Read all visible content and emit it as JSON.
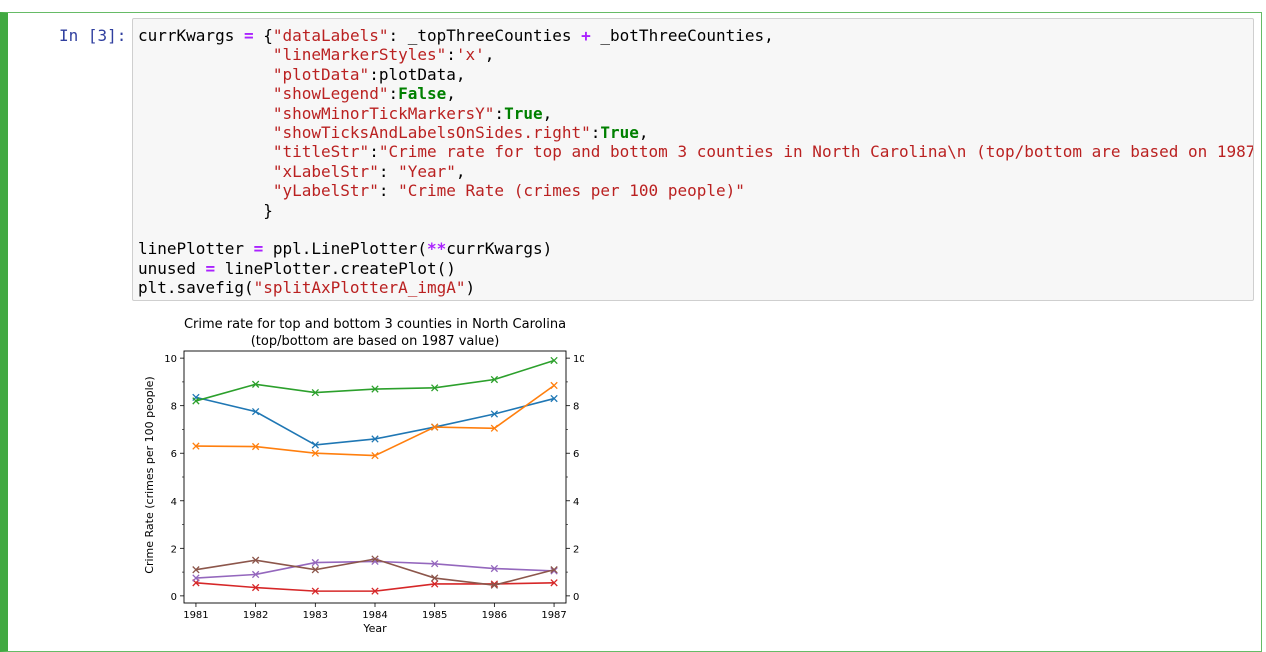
{
  "cell": {
    "prompt": "In [3]:",
    "code_lines": [
      [
        {
          "t": "t",
          "v": "currKwargs "
        },
        {
          "t": "o",
          "v": "="
        },
        {
          "t": "t",
          "v": " {"
        },
        {
          "t": "s",
          "v": "\"dataLabels\""
        },
        {
          "t": "t",
          "v": ": _topThreeCounties "
        },
        {
          "t": "o",
          "v": "+"
        },
        {
          "t": "t",
          "v": " _botThreeCounties,"
        }
      ],
      [
        {
          "t": "t",
          "v": "              "
        },
        {
          "t": "s",
          "v": "\"lineMarkerStyles\""
        },
        {
          "t": "t",
          "v": ":"
        },
        {
          "t": "s",
          "v": "'x'"
        },
        {
          "t": "t",
          "v": ","
        }
      ],
      [
        {
          "t": "t",
          "v": "              "
        },
        {
          "t": "s",
          "v": "\"plotData\""
        },
        {
          "t": "t",
          "v": ":plotData,"
        }
      ],
      [
        {
          "t": "t",
          "v": "              "
        },
        {
          "t": "s",
          "v": "\"showLegend\""
        },
        {
          "t": "t",
          "v": ":"
        },
        {
          "t": "k",
          "v": "False"
        },
        {
          "t": "t",
          "v": ","
        }
      ],
      [
        {
          "t": "t",
          "v": "              "
        },
        {
          "t": "s",
          "v": "\"showMinorTickMarkersY\""
        },
        {
          "t": "t",
          "v": ":"
        },
        {
          "t": "k",
          "v": "True"
        },
        {
          "t": "t",
          "v": ","
        }
      ],
      [
        {
          "t": "t",
          "v": "              "
        },
        {
          "t": "s",
          "v": "\"showTicksAndLabelsOnSides.right\""
        },
        {
          "t": "t",
          "v": ":"
        },
        {
          "t": "k",
          "v": "True"
        },
        {
          "t": "t",
          "v": ","
        }
      ],
      [
        {
          "t": "t",
          "v": "              "
        },
        {
          "t": "s",
          "v": "\"titleStr\""
        },
        {
          "t": "t",
          "v": ":"
        },
        {
          "t": "s",
          "v": "\"Crime rate for top and bottom 3 counties in North Carolina\\n (top/bottom are based on 1987"
        }
      ],
      [
        {
          "t": "t",
          "v": "              "
        },
        {
          "t": "s",
          "v": "\"xLabelStr\""
        },
        {
          "t": "t",
          "v": ": "
        },
        {
          "t": "s",
          "v": "\"Year\""
        },
        {
          "t": "t",
          "v": ","
        }
      ],
      [
        {
          "t": "t",
          "v": "              "
        },
        {
          "t": "s",
          "v": "\"yLabelStr\""
        },
        {
          "t": "t",
          "v": ": "
        },
        {
          "t": "s",
          "v": "\"Crime Rate (crimes per 100 people)\""
        }
      ],
      [
        {
          "t": "t",
          "v": "             }"
        }
      ],
      [
        {
          "t": "t",
          "v": ""
        }
      ],
      [
        {
          "t": "t",
          "v": "linePlotter "
        },
        {
          "t": "o",
          "v": "="
        },
        {
          "t": "t",
          "v": " ppl.LinePlotter("
        },
        {
          "t": "o",
          "v": "**"
        },
        {
          "t": "t",
          "v": "currKwargs)"
        }
      ],
      [
        {
          "t": "t",
          "v": "unused "
        },
        {
          "t": "o",
          "v": "="
        },
        {
          "t": "t",
          "v": " linePlotter.createPlot()"
        }
      ],
      [
        {
          "t": "t",
          "v": "plt.savefig("
        },
        {
          "t": "s",
          "v": "\"splitAxPlotterA_imgA\""
        },
        {
          "t": "t",
          "v": ")"
        }
      ]
    ]
  },
  "colors": {
    "cell_border": "#42a942",
    "prompt": "#303f9f",
    "code_bg": "#f7f7f7",
    "string": "#ba2121",
    "keyword": "#008000",
    "operator": "#aa22ff"
  },
  "chart_data": {
    "type": "line",
    "title": "Crime rate for top and bottom 3 counties in North Carolina",
    "subtitle": "(top/bottom are based on 1987 value)",
    "xlabel": "Year",
    "ylabel": "Crime Rate (crimes per 100 people)",
    "x": [
      1981,
      1982,
      1983,
      1984,
      1985,
      1986,
      1987
    ],
    "xlim": [
      1980.8,
      1987.2
    ],
    "ylim": [
      -0.3,
      10.3
    ],
    "yticks": [
      0,
      2,
      4,
      6,
      8,
      10
    ],
    "minor_ticks_y": true,
    "right_axis_labels": true,
    "legend": false,
    "grid": false,
    "marker": "x",
    "series": [
      {
        "color": "#1f77b4",
        "values": [
          8.35,
          7.75,
          6.35,
          6.6,
          7.1,
          7.65,
          8.3
        ]
      },
      {
        "color": "#ff7f0e",
        "values": [
          6.3,
          6.28,
          6.0,
          5.9,
          7.1,
          7.05,
          8.85
        ]
      },
      {
        "color": "#2ca02c",
        "values": [
          8.2,
          8.9,
          8.55,
          8.7,
          8.75,
          9.1,
          9.9
        ]
      },
      {
        "color": "#d62728",
        "values": [
          0.55,
          0.35,
          0.2,
          0.2,
          0.5,
          0.5,
          0.55
        ]
      },
      {
        "color": "#9467bd",
        "values": [
          0.75,
          0.9,
          1.4,
          1.45,
          1.35,
          1.15,
          1.05
        ]
      },
      {
        "color": "#8c564b",
        "values": [
          1.1,
          1.5,
          1.1,
          1.55,
          0.75,
          0.45,
          1.1
        ]
      }
    ]
  }
}
